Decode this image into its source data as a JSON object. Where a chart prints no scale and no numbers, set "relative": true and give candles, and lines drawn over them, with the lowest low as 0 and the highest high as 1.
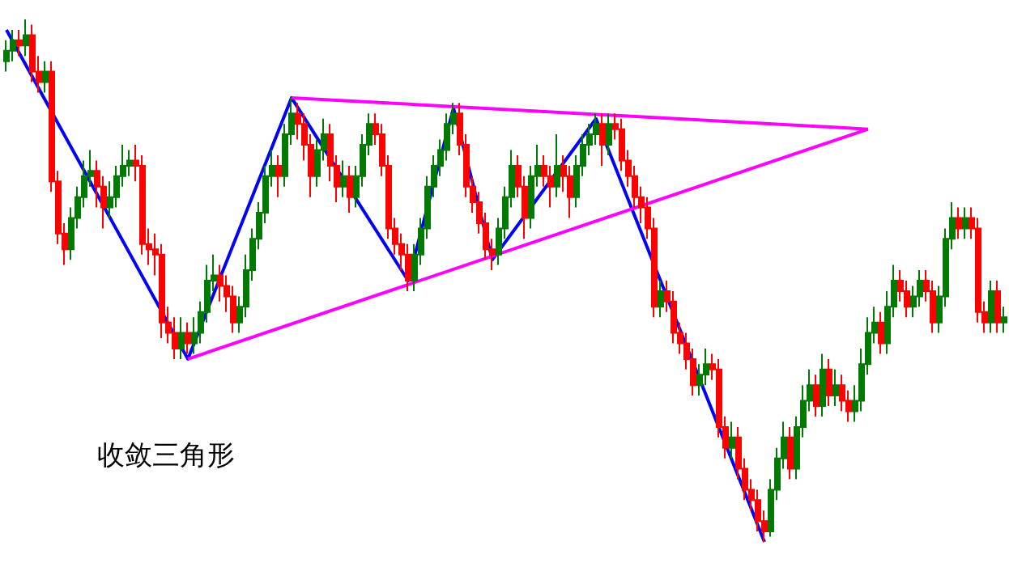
{
  "chart_data": {
    "type": "candlestick",
    "relative": true,
    "annotations": [
      "收敛三角形"
    ],
    "categories": [
      null,
      null,
      null,
      null,
      null,
      null,
      null,
      null,
      null,
      null,
      null,
      null,
      null,
      null,
      null,
      null,
      null,
      null,
      null,
      null,
      null,
      null,
      null,
      null,
      null,
      null,
      null,
      null,
      null,
      null,
      null,
      null,
      null,
      null,
      null,
      null,
      null,
      null,
      null,
      null,
      null,
      null,
      null,
      null,
      null,
      null,
      null,
      null,
      null,
      null,
      null,
      null,
      null,
      null,
      null,
      null,
      null,
      null,
      null,
      null,
      null,
      null,
      null,
      null,
      null,
      null,
      null,
      null,
      null,
      null,
      null,
      null,
      null,
      null,
      null,
      null,
      null,
      null,
      null,
      null,
      null,
      null,
      null,
      null,
      null,
      null,
      null,
      null,
      null,
      null,
      null,
      null,
      null,
      null,
      null,
      null,
      null,
      null,
      null,
      null,
      null,
      null,
      null,
      null,
      null,
      null,
      null,
      null,
      null,
      null,
      null,
      null,
      null,
      null,
      null,
      null,
      null,
      null,
      null,
      null,
      null,
      null,
      null,
      null,
      null,
      null,
      null,
      null,
      null,
      null,
      null,
      null,
      null,
      null,
      null,
      null,
      null,
      null,
      null,
      null,
      null,
      null,
      null,
      null,
      null,
      null,
      null,
      null,
      null,
      null,
      null,
      null,
      null,
      null,
      null
    ],
    "colors": [
      "#007a00",
      "#007a00",
      "#ff0000",
      "#007a00",
      "#ff0000",
      "#ff0000",
      "#007a00",
      "#ff0000",
      "#ff0000",
      "#ff0000",
      "#007a00",
      "#007a00",
      "#007a00",
      "#007a00",
      "#ff0000",
      "#ff0000",
      "#007a00",
      "#007a00",
      "#007a00",
      "#007a00",
      "#ff0000",
      "#ff0000",
      "#ff0000",
      "#ff0000",
      "#ff0000",
      "#ff0000",
      "#ff0000",
      "#007a00",
      "#ff0000",
      "#007a00",
      "#007a00",
      "#007a00",
      "#007a00",
      "#ff0000",
      "#ff0000",
      "#ff0000",
      "#007a00",
      "#007a00",
      "#007a00",
      "#007a00",
      "#007a00",
      "#007a00",
      "#ff0000",
      "#007a00",
      "#007a00",
      "#ff0000",
      "#ff0000",
      "#ff0000",
      "#007a00",
      "#007a00",
      "#ff0000",
      "#ff0000",
      "#007a00",
      "#ff0000",
      "#007a00",
      "#007a00",
      "#007a00",
      "#ff0000",
      "#ff0000",
      "#ff0000",
      "#ff0000",
      "#ff0000",
      "#ff0000",
      "#007a00",
      "#007a00",
      "#007a00",
      "#007a00",
      "#007a00",
      "#007a00",
      "#007a00",
      "#ff0000",
      "#ff0000",
      "#ff0000",
      "#ff0000",
      "#ff0000",
      "#ff0000",
      "#007a00",
      "#007a00",
      "#007a00",
      "#ff0000",
      "#ff0000",
      "#007a00",
      "#007a00",
      "#ff0000",
      "#ff0000",
      "#007a00",
      "#ff0000",
      "#ff0000",
      "#007a00",
      "#007a00",
      "#007a00",
      "#007a00",
      "#ff0000",
      "#007a00",
      "#ff0000",
      "#ff0000",
      "#ff0000",
      "#ff0000",
      "#ff0000",
      "#ff0000",
      "#ff0000",
      "#007a00",
      "#ff0000",
      "#ff0000",
      "#ff0000",
      "#ff0000",
      "#ff0000",
      "#007a00",
      "#007a00",
      "#ff0000",
      "#ff0000",
      "#ff0000",
      "#007a00",
      "#ff0000",
      "#ff0000",
      "#ff0000",
      "#ff0000",
      "#ff0000",
      "#007a00",
      "#007a00",
      "#007a00",
      "#ff0000",
      "#007a00",
      "#007a00",
      "#007a00",
      "#ff0000",
      "#007a00",
      "#ff0000",
      "#007a00",
      "#ff0000",
      "#ff0000",
      "#007a00",
      "#007a00",
      "#007a00",
      "#007a00",
      "#ff0000",
      "#007a00",
      "#007a00",
      "#ff0000",
      "#ff0000",
      "#007a00",
      "#007a00",
      "#ff0000",
      "#ff0000",
      "#007a00",
      "#007a00",
      "#007a00",
      "#ff0000",
      "#007a00",
      "#ff0000",
      "#ff0000",
      "#ff0000",
      "#007a00",
      "#ff0000",
      "#007a00"
    ],
    "ohlc": [
      [
        0.92,
        0.96,
        0.9,
        0.94
      ],
      [
        0.94,
        0.98,
        0.92,
        0.96
      ],
      [
        0.96,
        0.98,
        0.93,
        0.95
      ],
      [
        0.95,
        1.0,
        0.93,
        0.97
      ],
      [
        0.97,
        0.99,
        0.88,
        0.9
      ],
      [
        0.9,
        0.93,
        0.86,
        0.88
      ],
      [
        0.88,
        0.92,
        0.86,
        0.9
      ],
      [
        0.9,
        0.92,
        0.67,
        0.69
      ],
      [
        0.69,
        0.71,
        0.57,
        0.59
      ],
      [
        0.59,
        0.61,
        0.53,
        0.56
      ],
      [
        0.56,
        0.64,
        0.54,
        0.62
      ],
      [
        0.62,
        0.68,
        0.6,
        0.66
      ],
      [
        0.66,
        0.73,
        0.64,
        0.7
      ],
      [
        0.7,
        0.75,
        0.68,
        0.71
      ],
      [
        0.71,
        0.73,
        0.64,
        0.68
      ],
      [
        0.68,
        0.7,
        0.6,
        0.64
      ],
      [
        0.64,
        0.69,
        0.62,
        0.66
      ],
      [
        0.66,
        0.72,
        0.64,
        0.7
      ],
      [
        0.7,
        0.76,
        0.68,
        0.72
      ],
      [
        0.72,
        0.75,
        0.7,
        0.73
      ],
      [
        0.73,
        0.76,
        0.69,
        0.72
      ],
      [
        0.72,
        0.74,
        0.55,
        0.57
      ],
      [
        0.57,
        0.6,
        0.53,
        0.56
      ],
      [
        0.56,
        0.59,
        0.51,
        0.55
      ],
      [
        0.55,
        0.57,
        0.39,
        0.42
      ],
      [
        0.42,
        0.45,
        0.38,
        0.4
      ],
      [
        0.4,
        0.43,
        0.35,
        0.37
      ],
      [
        0.37,
        0.43,
        0.35,
        0.4
      ],
      [
        0.4,
        0.42,
        0.36,
        0.38
      ],
      [
        0.38,
        0.43,
        0.36,
        0.4
      ],
      [
        0.4,
        0.46,
        0.38,
        0.44
      ],
      [
        0.44,
        0.53,
        0.42,
        0.5
      ],
      [
        0.5,
        0.55,
        0.48,
        0.51
      ],
      [
        0.51,
        0.53,
        0.46,
        0.49
      ],
      [
        0.49,
        0.51,
        0.44,
        0.47
      ],
      [
        0.47,
        0.49,
        0.4,
        0.42
      ],
      [
        0.42,
        0.47,
        0.4,
        0.45
      ],
      [
        0.45,
        0.55,
        0.43,
        0.52
      ],
      [
        0.52,
        0.6,
        0.5,
        0.58
      ],
      [
        0.58,
        0.65,
        0.56,
        0.63
      ],
      [
        0.63,
        0.72,
        0.61,
        0.7
      ],
      [
        0.7,
        0.75,
        0.68,
        0.72
      ],
      [
        0.72,
        0.74,
        0.66,
        0.7
      ],
      [
        0.7,
        0.8,
        0.68,
        0.78
      ],
      [
        0.78,
        0.85,
        0.76,
        0.82
      ],
      [
        0.82,
        0.84,
        0.77,
        0.8
      ],
      [
        0.8,
        0.82,
        0.73,
        0.76
      ],
      [
        0.76,
        0.78,
        0.66,
        0.7
      ],
      [
        0.7,
        0.77,
        0.68,
        0.75
      ],
      [
        0.75,
        0.81,
        0.73,
        0.78
      ],
      [
        0.78,
        0.8,
        0.69,
        0.72
      ],
      [
        0.72,
        0.74,
        0.65,
        0.68
      ],
      [
        0.68,
        0.73,
        0.66,
        0.7
      ],
      [
        0.7,
        0.72,
        0.63,
        0.66
      ],
      [
        0.66,
        0.72,
        0.64,
        0.7
      ],
      [
        0.7,
        0.78,
        0.68,
        0.76
      ],
      [
        0.76,
        0.82,
        0.74,
        0.8
      ],
      [
        0.8,
        0.82,
        0.76,
        0.78
      ],
      [
        0.78,
        0.8,
        0.7,
        0.72
      ],
      [
        0.72,
        0.74,
        0.58,
        0.6
      ],
      [
        0.6,
        0.62,
        0.55,
        0.57
      ],
      [
        0.57,
        0.59,
        0.52,
        0.55
      ],
      [
        0.55,
        0.57,
        0.48,
        0.5
      ],
      [
        0.5,
        0.57,
        0.48,
        0.55
      ],
      [
        0.55,
        0.62,
        0.53,
        0.6
      ],
      [
        0.6,
        0.7,
        0.58,
        0.68
      ],
      [
        0.68,
        0.74,
        0.66,
        0.72
      ],
      [
        0.72,
        0.77,
        0.7,
        0.75
      ],
      [
        0.75,
        0.82,
        0.73,
        0.8
      ],
      [
        0.8,
        0.84,
        0.78,
        0.82
      ],
      [
        0.82,
        0.84,
        0.74,
        0.76
      ],
      [
        0.76,
        0.78,
        0.66,
        0.68
      ],
      [
        0.68,
        0.7,
        0.63,
        0.65
      ],
      [
        0.65,
        0.67,
        0.59,
        0.61
      ],
      [
        0.61,
        0.63,
        0.54,
        0.56
      ],
      [
        0.56,
        0.58,
        0.52,
        0.55
      ],
      [
        0.55,
        0.62,
        0.53,
        0.6
      ],
      [
        0.6,
        0.68,
        0.58,
        0.66
      ],
      [
        0.66,
        0.75,
        0.64,
        0.72
      ],
      [
        0.72,
        0.74,
        0.66,
        0.68
      ],
      [
        0.68,
        0.7,
        0.58,
        0.62
      ],
      [
        0.62,
        0.72,
        0.6,
        0.7
      ],
      [
        0.7,
        0.76,
        0.68,
        0.72
      ],
      [
        0.72,
        0.74,
        0.68,
        0.7
      ],
      [
        0.7,
        0.72,
        0.64,
        0.68
      ],
      [
        0.68,
        0.78,
        0.66,
        0.72
      ],
      [
        0.72,
        0.74,
        0.67,
        0.7
      ],
      [
        0.7,
        0.72,
        0.62,
        0.66
      ],
      [
        0.66,
        0.74,
        0.64,
        0.72
      ],
      [
        0.72,
        0.78,
        0.7,
        0.76
      ],
      [
        0.76,
        0.8,
        0.74,
        0.78
      ],
      [
        0.78,
        0.82,
        0.76,
        0.8
      ],
      [
        0.8,
        0.82,
        0.72,
        0.76
      ],
      [
        0.76,
        0.82,
        0.74,
        0.8
      ],
      [
        0.8,
        0.82,
        0.77,
        0.79
      ],
      [
        0.79,
        0.81,
        0.71,
        0.73
      ],
      [
        0.73,
        0.75,
        0.68,
        0.7
      ],
      [
        0.7,
        0.72,
        0.64,
        0.66
      ],
      [
        0.66,
        0.68,
        0.61,
        0.64
      ],
      [
        0.64,
        0.66,
        0.58,
        0.6
      ],
      [
        0.6,
        0.62,
        0.43,
        0.45
      ],
      [
        0.45,
        0.5,
        0.43,
        0.48
      ],
      [
        0.48,
        0.5,
        0.44,
        0.46
      ],
      [
        0.46,
        0.48,
        0.38,
        0.4
      ],
      [
        0.4,
        0.42,
        0.36,
        0.38
      ],
      [
        0.38,
        0.4,
        0.33,
        0.35
      ],
      [
        0.35,
        0.37,
        0.28,
        0.3
      ],
      [
        0.3,
        0.34,
        0.28,
        0.32
      ],
      [
        0.32,
        0.37,
        0.3,
        0.34
      ],
      [
        0.34,
        0.36,
        0.31,
        0.33
      ],
      [
        0.33,
        0.35,
        0.2,
        0.22
      ],
      [
        0.22,
        0.24,
        0.16,
        0.18
      ],
      [
        0.18,
        0.23,
        0.16,
        0.2
      ],
      [
        0.2,
        0.22,
        0.12,
        0.14
      ],
      [
        0.14,
        0.16,
        0.08,
        0.1
      ],
      [
        0.1,
        0.12,
        0.06,
        0.08
      ],
      [
        0.08,
        0.1,
        0.02,
        0.04
      ],
      [
        0.04,
        0.06,
        0,
        0.02
      ],
      [
        0.02,
        0.12,
        0.01,
        0.1
      ],
      [
        0.1,
        0.18,
        0.08,
        0.16
      ],
      [
        0.16,
        0.23,
        0.14,
        0.2
      ],
      [
        0.2,
        0.22,
        0.12,
        0.14
      ],
      [
        0.14,
        0.24,
        0.12,
        0.22
      ],
      [
        0.22,
        0.3,
        0.2,
        0.27
      ],
      [
        0.27,
        0.33,
        0.25,
        0.3
      ],
      [
        0.3,
        0.32,
        0.24,
        0.26
      ],
      [
        0.26,
        0.36,
        0.24,
        0.33
      ],
      [
        0.33,
        0.35,
        0.26,
        0.28
      ],
      [
        0.28,
        0.33,
        0.26,
        0.3
      ],
      [
        0.3,
        0.32,
        0.25,
        0.27
      ],
      [
        0.27,
        0.29,
        0.23,
        0.25
      ],
      [
        0.25,
        0.3,
        0.23,
        0.27
      ],
      [
        0.27,
        0.37,
        0.25,
        0.34
      ],
      [
        0.34,
        0.43,
        0.32,
        0.4
      ],
      [
        0.4,
        0.45,
        0.38,
        0.42
      ],
      [
        0.42,
        0.44,
        0.36,
        0.38
      ],
      [
        0.38,
        0.48,
        0.36,
        0.45
      ],
      [
        0.45,
        0.53,
        0.43,
        0.5
      ],
      [
        0.5,
        0.52,
        0.46,
        0.48
      ],
      [
        0.48,
        0.5,
        0.43,
        0.45
      ],
      [
        0.45,
        0.49,
        0.43,
        0.47
      ],
      [
        0.47,
        0.52,
        0.45,
        0.5
      ],
      [
        0.5,
        0.52,
        0.46,
        0.48
      ],
      [
        0.48,
        0.5,
        0.4,
        0.42
      ],
      [
        0.42,
        0.49,
        0.4,
        0.47
      ],
      [
        0.47,
        0.6,
        0.45,
        0.58
      ],
      [
        0.58,
        0.65,
        0.56,
        0.62
      ],
      [
        0.62,
        0.64,
        0.58,
        0.6
      ],
      [
        0.6,
        0.64,
        0.58,
        0.62
      ],
      [
        0.62,
        0.64,
        0.58,
        0.6
      ],
      [
        0.6,
        0.62,
        0.42,
        0.44
      ],
      [
        0.44,
        0.46,
        0.4,
        0.42
      ],
      [
        0.42,
        0.5,
        0.4,
        0.48
      ],
      [
        0.48,
        0.5,
        0.4,
        0.42
      ],
      [
        0.42,
        0.45,
        0.4,
        0.43
      ]
    ],
    "series": [
      {
        "type": "line",
        "color": "#0000ff",
        "values": [
          0.98,
          null,
          null,
          null,
          null,
          null,
          null,
          null,
          null,
          null,
          null,
          null,
          null,
          null,
          null,
          null,
          null,
          null,
          null,
          null,
          null,
          null,
          null,
          null,
          null,
          null,
          null,
          null,
          0.35,
          null,
          null,
          null,
          null,
          null,
          null,
          null,
          null,
          null,
          null,
          null,
          null,
          null,
          null,
          null,
          0.85,
          null,
          null,
          null,
          null,
          null,
          null,
          null,
          null,
          null,
          null,
          null,
          null,
          null,
          null,
          null,
          null,
          null,
          0.5,
          null,
          null,
          null,
          null,
          null,
          null,
          0.83,
          null,
          null,
          null,
          null,
          null,
          0.54,
          null,
          null,
          null,
          null,
          null,
          null,
          null,
          null,
          null,
          null,
          null,
          null,
          null,
          null,
          null,
          0.81,
          null,
          null,
          null,
          null,
          null,
          null,
          null,
          null,
          null,
          null,
          null,
          null,
          null,
          null,
          null,
          null,
          null,
          null,
          null,
          null,
          null,
          null,
          null,
          null,
          null,
          0,
          null,
          null,
          null,
          null,
          null,
          null,
          null,
          null,
          null,
          null,
          null,
          null,
          null,
          null,
          null,
          null,
          null,
          null,
          null,
          null,
          null,
          null,
          null,
          null,
          null,
          null,
          null,
          null,
          null,
          null,
          null,
          null,
          null,
          null,
          null,
          null,
          null
        ]
      },
      {
        "type": "line",
        "color": "#ff00ff",
        "values": [
          null,
          null,
          null,
          null,
          null,
          null,
          null,
          null,
          null,
          null,
          null,
          null,
          null,
          null,
          null,
          null,
          null,
          null,
          null,
          null,
          null,
          null,
          null,
          null,
          null,
          null,
          null,
          null,
          null,
          null,
          null,
          null,
          null,
          null,
          null,
          null,
          null,
          null,
          null,
          null,
          null,
          null,
          null,
          null,
          0.85,
          null,
          null,
          null,
          null,
          null,
          null,
          null,
          null,
          null,
          null,
          null,
          null,
          null,
          null,
          null,
          null,
          null,
          null,
          null,
          null,
          null,
          null,
          null,
          null,
          null,
          null,
          null,
          null,
          null,
          null,
          null,
          null,
          null,
          null,
          null,
          null,
          null,
          null,
          null,
          null,
          null,
          null,
          null,
          null,
          null,
          null,
          null,
          null,
          null,
          null,
          null,
          null,
          null,
          null,
          null,
          null,
          null,
          null,
          null,
          null,
          null,
          null,
          null,
          null,
          null,
          null,
          null,
          null,
          null,
          null,
          null,
          null,
          null,
          null,
          null,
          null,
          null,
          null,
          null,
          null,
          null,
          null,
          null,
          null,
          null,
          null,
          null,
          null,
          0.79,
          null,
          null,
          null,
          null,
          null,
          null,
          null,
          null,
          null,
          null,
          null,
          null,
          null,
          null,
          null,
          null,
          null,
          null,
          null,
          null,
          null
        ]
      },
      {
        "type": "line",
        "color": "#ff00ff",
        "values": [
          null,
          null,
          null,
          null,
          null,
          null,
          null,
          null,
          null,
          null,
          null,
          null,
          null,
          null,
          null,
          null,
          null,
          null,
          null,
          null,
          null,
          null,
          null,
          null,
          null,
          null,
          null,
          null,
          0.35,
          null,
          null,
          null,
          null,
          null,
          null,
          null,
          null,
          null,
          null,
          null,
          null,
          null,
          null,
          null,
          null,
          null,
          null,
          null,
          null,
          null,
          null,
          null,
          null,
          null,
          null,
          null,
          null,
          null,
          null,
          null,
          null,
          null,
          null,
          null,
          null,
          null,
          null,
          null,
          null,
          null,
          null,
          null,
          null,
          null,
          null,
          null,
          null,
          null,
          null,
          null,
          null,
          null,
          null,
          null,
          null,
          null,
          null,
          null,
          null,
          null,
          null,
          null,
          null,
          null,
          null,
          null,
          null,
          null,
          null,
          null,
          null,
          null,
          null,
          null,
          null,
          null,
          null,
          null,
          null,
          null,
          null,
          null,
          null,
          null,
          null,
          null,
          null,
          null,
          null,
          null,
          null,
          null,
          null,
          null,
          null,
          null,
          null,
          null,
          null,
          null,
          null,
          null,
          null,
          0.79,
          null,
          null,
          null,
          null,
          null,
          null,
          null,
          null,
          null,
          null,
          null,
          null,
          null,
          null,
          null,
          null,
          null,
          null,
          null,
          null,
          null
        ]
      }
    ]
  }
}
